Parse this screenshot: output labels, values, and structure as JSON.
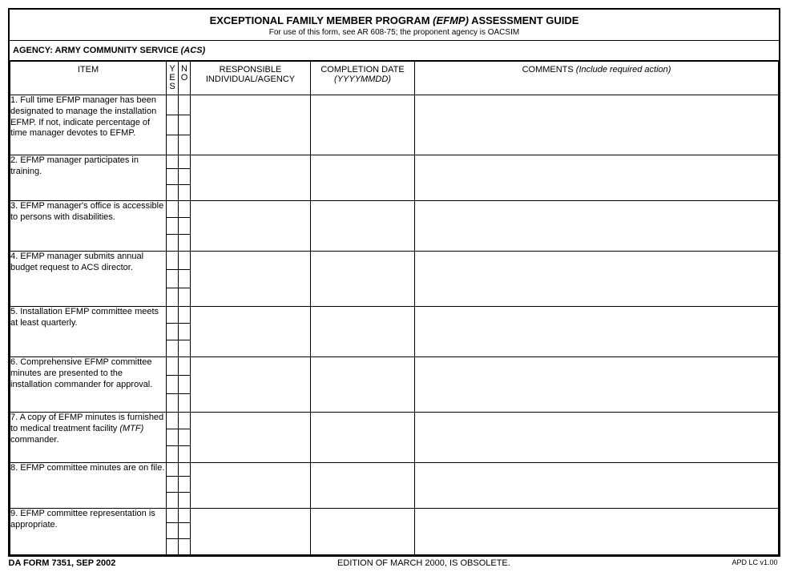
{
  "header": {
    "title_pre": "EXCEPTIONAL FAMILY MEMBER PROGRAM ",
    "title_italic": "(EFMP)",
    "title_post": " ASSESSMENT GUIDE",
    "subtitle": "For use of this form, see AR 608-75; the proponent agency is OACSIM"
  },
  "agency": {
    "label": "AGENCY:  ARMY COMMUNITY SERVICE ",
    "italic": "(ACS)"
  },
  "columns": {
    "item": "ITEM",
    "yes": "Y\nE\nS",
    "no": "N\nO",
    "responsible": "RESPONSIBLE\nINDIVIDUAL/AGENCY",
    "completion_pre": "COMPLETION DATE",
    "completion_italic": "(YYYYMMDD)",
    "comments_pre": "COMMENTS ",
    "comments_italic": "(Include required action)"
  },
  "rows": [
    {
      "text": "1.  Full time EFMP manager has been designated to manage the installation EFMP.  If not, indicate percentage of time manager devotes to EFMP.",
      "height": 73
    },
    {
      "text": "2.  EFMP manager participates in training.",
      "height": 48
    },
    {
      "text": "3.  EFMP manager's office is accessible to persons with disabilities.",
      "height": 60
    },
    {
      "text": "4.  EFMP manager submits annual budget request to ACS director.",
      "height": 68
    },
    {
      "text": "5.  Installation EFMP committee meets at least quarterly.",
      "height": 60
    },
    {
      "text": "6.  Comprehensive EFMP committee minutes are presented to the installation commander for approval.",
      "height": 68
    },
    {
      "text_pre": "7.  A copy of EFMP minutes is furnished to medical treatment facility ",
      "text_italic": "(MTF)",
      "text_post": " commander.",
      "height": 60
    },
    {
      "text": "8.  EFMP committee minutes are on file.",
      "height": 48
    },
    {
      "text": "9.  EFMP committee representation is appropriate.",
      "height": 52
    }
  ],
  "footer": {
    "left": "DA FORM 7351, SEP 2002",
    "center": "EDITION OF MARCH 2000, IS OBSOLETE.",
    "right": "APD LC v1.00"
  }
}
